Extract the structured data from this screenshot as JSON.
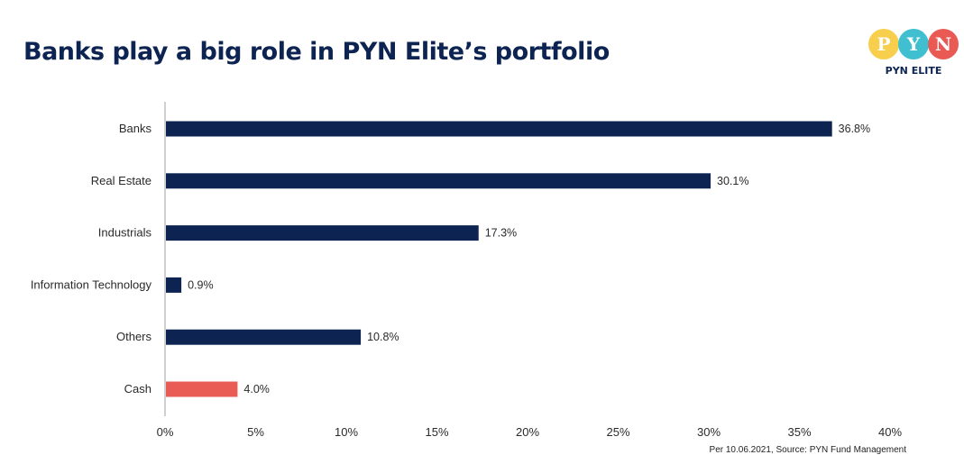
{
  "header": {
    "title": "Banks play a big role in PYN Elite’s portfolio"
  },
  "logo": {
    "letters": [
      "P",
      "Y",
      "N"
    ],
    "colors": [
      "#f7cf4d",
      "#3fbfcf",
      "#ea5a55"
    ],
    "name": "PYN ELITE"
  },
  "chart_data": {
    "type": "bar",
    "orientation": "horizontal",
    "title": "Banks play a big role in PYN Elite’s portfolio",
    "categories": [
      "Banks",
      "Real Estate",
      "Industrials",
      "Information Technology",
      "Others",
      "Cash"
    ],
    "values": [
      36.8,
      30.1,
      17.3,
      0.9,
      10.8,
      4.0
    ],
    "value_labels": [
      "36.8%",
      "30.1%",
      "17.3%",
      "0.9%",
      "10.8%",
      "4.0%"
    ],
    "bar_colors": [
      "#0d2452",
      "#0d2452",
      "#0d2452",
      "#0d2452",
      "#0d2452",
      "#e85c55"
    ],
    "xlim": [
      0,
      40
    ],
    "x_ticks": [
      0,
      5,
      10,
      15,
      20,
      25,
      30,
      35,
      40
    ],
    "x_tick_labels": [
      "0%",
      "5%",
      "10%",
      "15%",
      "20%",
      "25%",
      "30%",
      "35%",
      "40%"
    ],
    "xlabel": "",
    "ylabel": "",
    "grid": false
  },
  "footer": {
    "source": "Per 10.06.2021, Source: PYN Fund Management"
  }
}
